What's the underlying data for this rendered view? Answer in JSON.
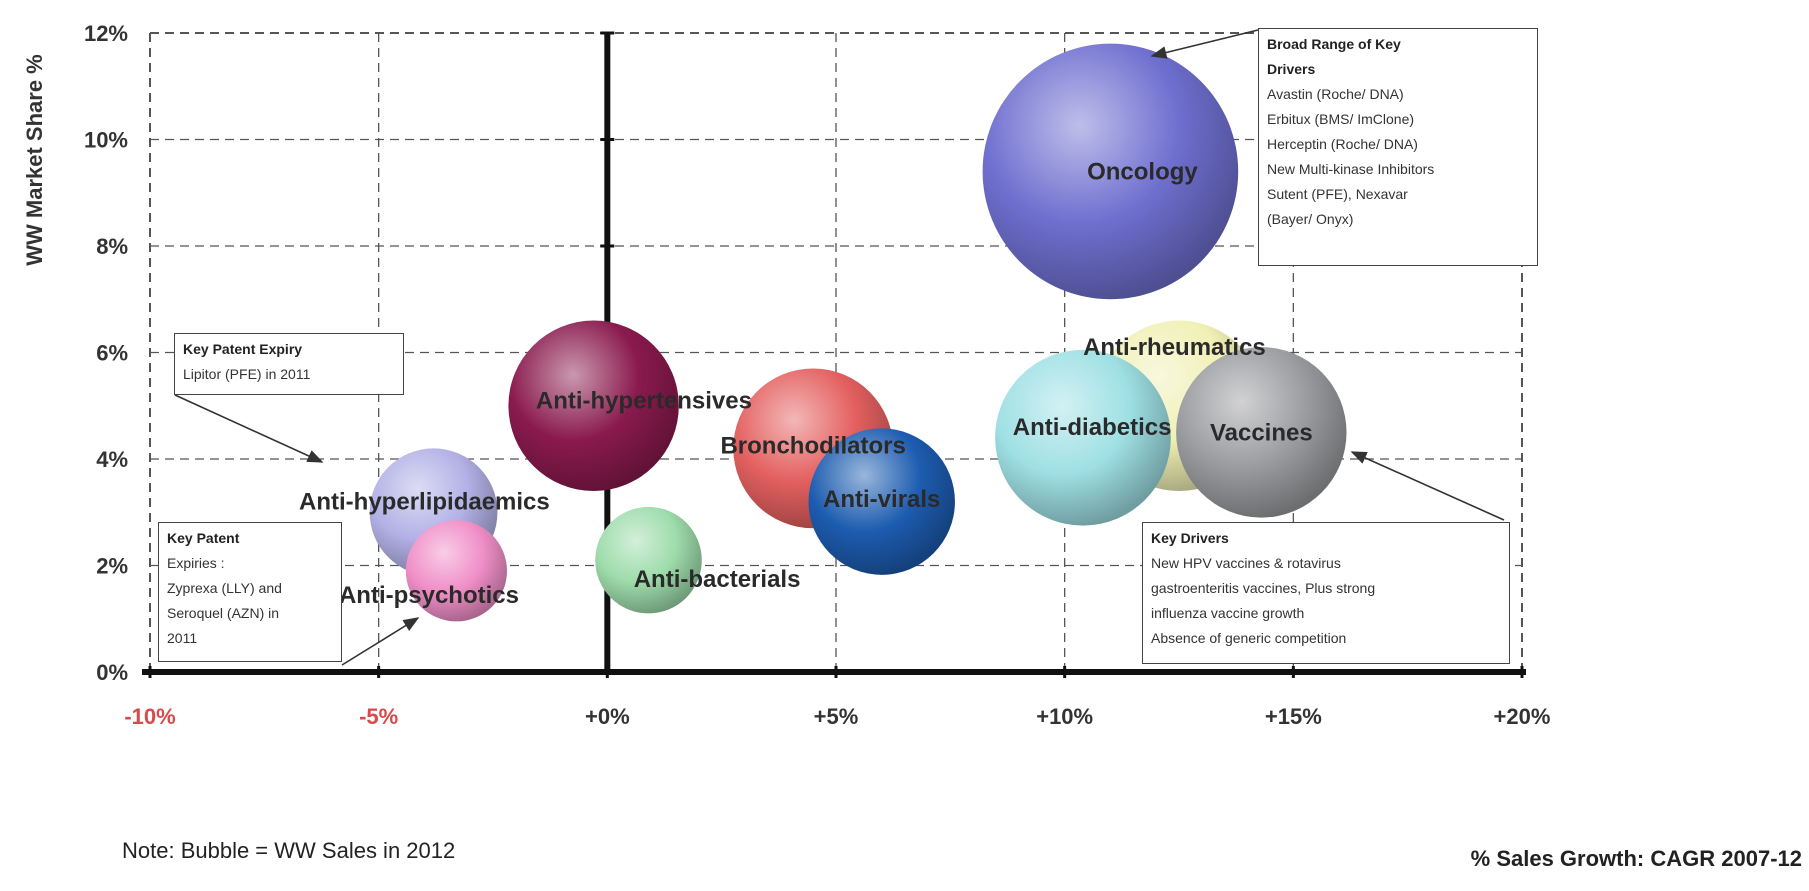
{
  "chart_data": {
    "type": "scatter",
    "subtype": "bubble",
    "ylabel": "WW Market Share %",
    "xlabel": "% Sales Growth: CAGR 2007-12",
    "note": "Note: Bubble = WW Sales in 2012",
    "xlim": [
      -10,
      20
    ],
    "ylim": [
      0,
      12
    ],
    "x_ticks": [
      {
        "value": -10,
        "label": "-10%",
        "color": "#d94a4a"
      },
      {
        "value": -5,
        "label": "-5%",
        "color": "#d94a4a"
      },
      {
        "value": 0,
        "label": "+0%",
        "color": "#333333"
      },
      {
        "value": 5,
        "label": "+5%",
        "color": "#333333"
      },
      {
        "value": 10,
        "label": "+10%",
        "color": "#333333"
      },
      {
        "value": 15,
        "label": "+15%",
        "color": "#333333"
      },
      {
        "value": 20,
        "label": "+20%",
        "color": "#333333"
      }
    ],
    "y_ticks": [
      {
        "value": 0,
        "label": "0%"
      },
      {
        "value": 2,
        "label": "2%"
      },
      {
        "value": 4,
        "label": "4%"
      },
      {
        "value": 6,
        "label": "6%"
      },
      {
        "value": 8,
        "label": "8%"
      },
      {
        "value": 10,
        "label": "10%"
      },
      {
        "value": 12,
        "label": "12%"
      }
    ],
    "grid": true,
    "bubbles": [
      {
        "name": "Anti-hyperlipidaemics",
        "label": "Anti-hyperlipidaemics",
        "x": -3.8,
        "y": 3.0,
        "size": 2.4,
        "color": "#b3b1e6",
        "label_dx": -0.2,
        "label_dy": 0.2
      },
      {
        "name": "Anti-psychotics",
        "label": "Anti-psychotics",
        "x": -3.3,
        "y": 1.9,
        "size": 1.9,
        "color": "#f08fc8",
        "label_dx": -0.6,
        "label_dy": -0.45
      },
      {
        "name": "Anti-hypertensives",
        "label": "Anti-hypertensives",
        "x": -0.3,
        "y": 5.0,
        "size": 3.2,
        "color": "#8a1a4e",
        "label_dx": 1.1,
        "label_dy": 0.1
      },
      {
        "name": "Anti-bacterials",
        "label": "Anti-bacterials",
        "x": 0.9,
        "y": 2.1,
        "size": 2.0,
        "color": "#9edcab",
        "label_dx": 1.5,
        "label_dy": -0.35
      },
      {
        "name": "Bronchodilators",
        "label": "Bronchodilators",
        "x": 4.5,
        "y": 4.2,
        "size": 3.0,
        "color": "#e46060",
        "label_dx": 0.0,
        "label_dy": 0.05
      },
      {
        "name": "Anti-virals",
        "label": "Anti-virals",
        "x": 6.0,
        "y": 3.2,
        "size": 2.75,
        "color": "#1d5cb0",
        "label_dx": 0.0,
        "label_dy": 0.05
      },
      {
        "name": "Oncology",
        "label": "Oncology",
        "x": 11.0,
        "y": 9.4,
        "size": 4.8,
        "color": "#6f6fd0",
        "label_dx": 0.7,
        "label_dy": 0.0
      },
      {
        "name": "Anti-rheumatics",
        "label": "Anti-rheumatics",
        "x": 12.5,
        "y": 5.0,
        "size": 3.2,
        "color": "#f0f0b5",
        "label_dx": -0.1,
        "label_dy": 1.1
      },
      {
        "name": "Anti-diabetics",
        "label": "Anti-diabetics",
        "x": 10.4,
        "y": 4.4,
        "size": 3.3,
        "color": "#9ee0e4",
        "label_dx": 0.2,
        "label_dy": 0.2
      },
      {
        "name": "Vaccines",
        "label": "Vaccines",
        "x": 14.3,
        "y": 4.5,
        "size": 3.2,
        "color": "#9a9c9f",
        "label_dx": 0.0,
        "label_dy": 0.0
      }
    ],
    "annotations": [
      {
        "id": "oncology",
        "title": "Broad Range of Key",
        "lines": [
          "Drivers",
          "Avastin (Roche/ DNA)",
          "Erbitux (BMS/ ImClone)",
          "Herceptin (Roche/ DNA)",
          "New Multi-kinase Inhibitors",
          "Sutent (PFE), Nexavar",
          "(Bayer/ Onyx)"
        ]
      },
      {
        "id": "patent-2011",
        "title": "Key Patent Expiry",
        "lines": [
          "Lipitor (PFE) in 2011"
        ]
      },
      {
        "id": "patent-expiries",
        "title": "Key Patent",
        "lines": [
          "Expiries :",
          "Zyprexa (LLY) and",
          "Seroquel (AZN) in",
          "2011"
        ]
      },
      {
        "id": "vaccines",
        "title": "Key Drivers",
        "lines": [
          "New HPV vaccines & rotavirus",
          "gastroenteritis vaccines, Plus strong",
          "influenza vaccine growth",
          "Absence of generic competition"
        ]
      }
    ]
  }
}
